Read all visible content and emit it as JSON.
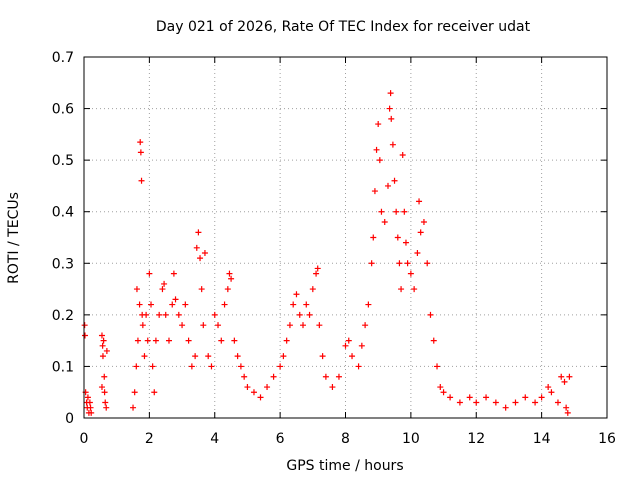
{
  "chart_data": {
    "type": "scatter",
    "title": "Day 021 of 2026, Rate Of TEC Index for receiver udat",
    "xlabel": "GPS time / hours",
    "ylabel": "ROTI / TECUs",
    "xlim": [
      0,
      16
    ],
    "ylim": [
      0,
      0.7
    ],
    "grid": true,
    "marker": "+",
    "color": "#ff0000",
    "xticks": [
      "0",
      "2",
      "4",
      "6",
      "8",
      "10",
      "12",
      "14",
      "16"
    ],
    "yticks": [
      "0",
      "0.1",
      "0.2",
      "0.3",
      "0.4",
      "0.5",
      "0.6",
      "0.7"
    ],
    "series": [
      {
        "name": "ROTI",
        "points": [
          [
            0.02,
            0.18
          ],
          [
            0.03,
            0.16
          ],
          [
            0.05,
            0.05
          ],
          [
            0.08,
            0.03
          ],
          [
            0.1,
            0.02
          ],
          [
            0.12,
            0.04
          ],
          [
            0.15,
            0.01
          ],
          [
            0.18,
            0.03
          ],
          [
            0.2,
            0.02
          ],
          [
            0.22,
            0.01
          ],
          [
            0.55,
            0.16
          ],
          [
            0.57,
            0.14
          ],
          [
            0.58,
            0.12
          ],
          [
            0.6,
            0.15
          ],
          [
            0.62,
            0.08
          ],
          [
            0.63,
            0.05
          ],
          [
            0.65,
            0.03
          ],
          [
            0.68,
            0.02
          ],
          [
            0.7,
            0.13
          ],
          [
            0.55,
            0.06
          ],
          [
            1.5,
            0.02
          ],
          [
            1.55,
            0.05
          ],
          [
            1.6,
            0.1
          ],
          [
            1.62,
            0.25
          ],
          [
            1.65,
            0.15
          ],
          [
            1.7,
            0.22
          ],
          [
            1.72,
            0.535
          ],
          [
            1.74,
            0.515
          ],
          [
            1.76,
            0.46
          ],
          [
            1.78,
            0.2
          ],
          [
            1.8,
            0.18
          ],
          [
            1.85,
            0.12
          ],
          [
            1.9,
            0.2
          ],
          [
            1.95,
            0.15
          ],
          [
            2.0,
            0.28
          ],
          [
            2.05,
            0.22
          ],
          [
            2.1,
            0.1
          ],
          [
            2.15,
            0.05
          ],
          [
            2.2,
            0.15
          ],
          [
            2.3,
            0.2
          ],
          [
            2.4,
            0.25
          ],
          [
            2.45,
            0.26
          ],
          [
            2.5,
            0.2
          ],
          [
            2.6,
            0.15
          ],
          [
            2.7,
            0.22
          ],
          [
            2.75,
            0.28
          ],
          [
            2.8,
            0.23
          ],
          [
            2.9,
            0.2
          ],
          [
            3.0,
            0.18
          ],
          [
            3.1,
            0.22
          ],
          [
            3.2,
            0.15
          ],
          [
            3.3,
            0.1
          ],
          [
            3.4,
            0.12
          ],
          [
            3.45,
            0.33
          ],
          [
            3.5,
            0.36
          ],
          [
            3.55,
            0.31
          ],
          [
            3.6,
            0.25
          ],
          [
            3.65,
            0.18
          ],
          [
            3.7,
            0.32
          ],
          [
            3.8,
            0.12
          ],
          [
            3.9,
            0.1
          ],
          [
            4.0,
            0.2
          ],
          [
            4.1,
            0.18
          ],
          [
            4.2,
            0.15
          ],
          [
            4.3,
            0.22
          ],
          [
            4.4,
            0.25
          ],
          [
            4.45,
            0.28
          ],
          [
            4.5,
            0.27
          ],
          [
            4.6,
            0.15
          ],
          [
            4.7,
            0.12
          ],
          [
            4.8,
            0.1
          ],
          [
            4.9,
            0.08
          ],
          [
            5.0,
            0.06
          ],
          [
            5.2,
            0.05
          ],
          [
            5.4,
            0.04
          ],
          [
            5.6,
            0.06
          ],
          [
            5.8,
            0.08
          ],
          [
            6.0,
            0.1
          ],
          [
            6.1,
            0.12
          ],
          [
            6.2,
            0.15
          ],
          [
            6.3,
            0.18
          ],
          [
            6.4,
            0.22
          ],
          [
            6.5,
            0.24
          ],
          [
            6.6,
            0.2
          ],
          [
            6.7,
            0.18
          ],
          [
            6.8,
            0.22
          ],
          [
            6.9,
            0.2
          ],
          [
            7.0,
            0.25
          ],
          [
            7.1,
            0.28
          ],
          [
            7.15,
            0.29
          ],
          [
            7.2,
            0.18
          ],
          [
            7.3,
            0.12
          ],
          [
            7.4,
            0.08
          ],
          [
            7.6,
            0.06
          ],
          [
            7.8,
            0.08
          ],
          [
            8.0,
            0.14
          ],
          [
            8.1,
            0.15
          ],
          [
            8.2,
            0.12
          ],
          [
            8.4,
            0.1
          ],
          [
            8.5,
            0.14
          ],
          [
            8.6,
            0.18
          ],
          [
            8.7,
            0.22
          ],
          [
            8.8,
            0.3
          ],
          [
            8.85,
            0.35
          ],
          [
            8.9,
            0.44
          ],
          [
            8.95,
            0.52
          ],
          [
            9.0,
            0.57
          ],
          [
            9.05,
            0.5
          ],
          [
            9.1,
            0.4
          ],
          [
            9.2,
            0.38
          ],
          [
            9.3,
            0.45
          ],
          [
            9.35,
            0.6
          ],
          [
            9.38,
            0.63
          ],
          [
            9.4,
            0.58
          ],
          [
            9.45,
            0.53
          ],
          [
            9.5,
            0.46
          ],
          [
            9.55,
            0.4
          ],
          [
            9.6,
            0.35
          ],
          [
            9.65,
            0.3
          ],
          [
            9.7,
            0.25
          ],
          [
            9.75,
            0.51
          ],
          [
            9.8,
            0.4
          ],
          [
            9.85,
            0.34
          ],
          [
            9.9,
            0.3
          ],
          [
            10.0,
            0.28
          ],
          [
            10.1,
            0.25
          ],
          [
            10.2,
            0.32
          ],
          [
            10.25,
            0.42
          ],
          [
            10.3,
            0.36
          ],
          [
            10.4,
            0.38
          ],
          [
            10.5,
            0.3
          ],
          [
            10.6,
            0.2
          ],
          [
            10.7,
            0.15
          ],
          [
            10.8,
            0.1
          ],
          [
            10.9,
            0.06
          ],
          [
            11.0,
            0.05
          ],
          [
            11.2,
            0.04
          ],
          [
            11.5,
            0.03
          ],
          [
            11.8,
            0.04
          ],
          [
            12.0,
            0.03
          ],
          [
            12.3,
            0.04
          ],
          [
            12.6,
            0.03
          ],
          [
            12.9,
            0.02
          ],
          [
            13.2,
            0.03
          ],
          [
            13.5,
            0.04
          ],
          [
            13.8,
            0.03
          ],
          [
            14.0,
            0.04
          ],
          [
            14.2,
            0.06
          ],
          [
            14.3,
            0.05
          ],
          [
            14.5,
            0.03
          ],
          [
            14.6,
            0.08
          ],
          [
            14.7,
            0.07
          ],
          [
            14.75,
            0.02
          ],
          [
            14.8,
            0.01
          ],
          [
            14.85,
            0.08
          ]
        ]
      }
    ]
  }
}
